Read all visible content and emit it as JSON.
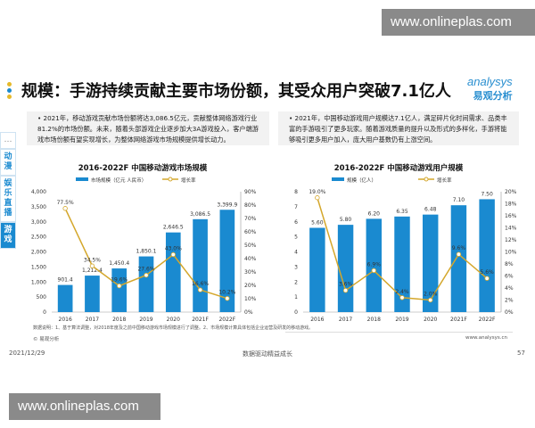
{
  "watermark": "www.onlineplas.com",
  "title": "规模：手游持续贡献主要市场份额，其受众用户突破7.1亿人",
  "logo": {
    "text_en": "analysys",
    "text_cn": "易观分析"
  },
  "colors": {
    "bar": "#1a8ad0",
    "line": "#d4a72c",
    "accent": "#1a8ad0",
    "dot_yellow": "#e5b92a",
    "dot_blue": "#1a8ad0"
  },
  "sidebar": {
    "more": "…",
    "items": [
      {
        "label": "动漫",
        "active": false
      },
      {
        "label": "娱乐直播",
        "active": false
      },
      {
        "label": "游戏",
        "active": true
      }
    ]
  },
  "notes": [
    "2021年，移动游戏贡献市场份额将达3,086.5亿元，贡献整体网络游戏行业81.2%的市场份额。未来，随着头部游戏企业逐步加大3A游戏投入，客户端游戏市场份额有望实现增长，为整体网络游戏市场规模提供增长动力。",
    "2021年，中国移动游戏用户规模达7.1亿人，满足碎片化时间需求、品类丰富的手游吸引了更多玩家。随着游戏质量的提升以及形式的多样化，手游将能够吸引更多用户加入，庞大用户基数仍有上涨空间。"
  ],
  "chart_data": [
    {
      "type": "bar+line",
      "title": "2016-2022F 中国移动游戏市场规模",
      "categories": [
        "2016",
        "2017",
        "2018",
        "2019",
        "2020",
        "2021F",
        "2022F"
      ],
      "series": [
        {
          "name": "市场规模（亿元 人民币）",
          "type": "bar",
          "axis": "left",
          "values": [
            901.4,
            1212.4,
            1450.4,
            1850.1,
            2646.5,
            3086.5,
            3399.9
          ],
          "labels": [
            "901.4",
            "1,212.4",
            "1,450.4",
            "1,850.1",
            "2,646.5",
            "3,086.5",
            "3,399.9"
          ]
        },
        {
          "name": "增长率",
          "type": "line",
          "axis": "right",
          "values": [
            77.5,
            34.5,
            19.6,
            27.6,
            43.0,
            16.6,
            10.2
          ],
          "labels": [
            "77.5%",
            "34.5%",
            "19.6%",
            "27.6%",
            "43.0%",
            "16.6%",
            "10.2%"
          ]
        }
      ],
      "ylim_left": [
        0,
        4000
      ],
      "yticks_left": [
        "0",
        "500",
        "1,000",
        "1,500",
        "2,000",
        "2,500",
        "3,000",
        "3,500",
        "4,000"
      ],
      "ylim_right": [
        0,
        90
      ],
      "yticks_right": [
        "0%",
        "10%",
        "20%",
        "30%",
        "40%",
        "50%",
        "60%",
        "70%",
        "80%",
        "90%"
      ],
      "legend": "top",
      "grid": false
    },
    {
      "type": "bar+line",
      "title": "2016-2022F 中国移动游戏用户规模",
      "categories": [
        "2016",
        "2017",
        "2018",
        "2019",
        "2020",
        "2021F",
        "2022F"
      ],
      "series": [
        {
          "name": "规模（亿人）",
          "type": "bar",
          "axis": "left",
          "values": [
            5.6,
            5.8,
            6.2,
            6.35,
            6.48,
            7.1,
            7.5
          ],
          "labels": [
            "5.60",
            "5.80",
            "6.20",
            "6.35",
            "6.48",
            "7.10",
            "7.50"
          ]
        },
        {
          "name": "增长率",
          "type": "line",
          "axis": "right",
          "values": [
            19.0,
            3.6,
            6.9,
            2.4,
            2.0,
            9.6,
            5.6
          ],
          "labels": [
            "19.0%",
            "3.6%",
            "6.9%",
            "2.4%",
            "2.0%",
            "9.6%",
            "5.6%"
          ]
        }
      ],
      "ylim_left": [
        0,
        8
      ],
      "yticks_left": [
        "0",
        "1",
        "2",
        "3",
        "4",
        "5",
        "6",
        "7",
        "8"
      ],
      "ylim_right": [
        0,
        20
      ],
      "yticks_right": [
        "0%",
        "2%",
        "4%",
        "6%",
        "8%",
        "10%",
        "12%",
        "14%",
        "16%",
        "18%",
        "20%"
      ],
      "legend": "top",
      "grid": false
    }
  ],
  "footnote": "数据说明：1、基于算法调整，对2018年度及之前中国移动游戏市场规模进行了调整。2、市场规模计算具体包括企业运营及研发的移动游戏。",
  "source": "© 易观分析",
  "website": "www.analysys.cn",
  "footer": {
    "date": "2021/12/29",
    "slogan": "数据驱动精益成长",
    "page": "57"
  }
}
